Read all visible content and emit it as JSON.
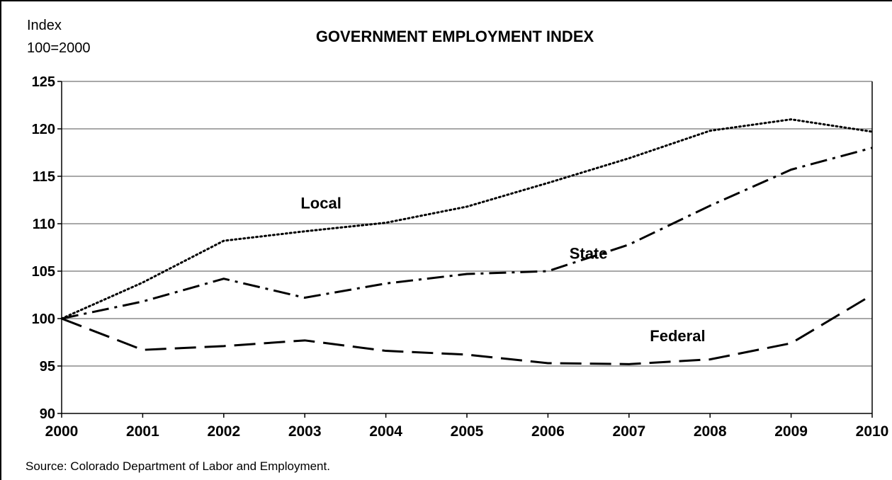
{
  "chart_data": {
    "type": "line",
    "title": "GOVERNMENT EMPLOYMENT INDEX",
    "ylabel_line1": "Index",
    "ylabel_line2": "100=2000",
    "source": "Source:  Colorado Department of Labor and Employment.",
    "x": [
      "2000",
      "2001",
      "2002",
      "2003",
      "2004",
      "2005",
      "2006",
      "2007",
      "2008",
      "2009",
      "2010"
    ],
    "ylim": [
      90,
      125
    ],
    "yticks": [
      "90",
      "95",
      "100",
      "105",
      "110",
      "115",
      "120",
      "125"
    ],
    "grid": true,
    "series": [
      {
        "name": "Local",
        "dash": "dotted",
        "values": [
          100,
          103.8,
          108.2,
          109.2,
          110.1,
          111.8,
          114.3,
          116.9,
          119.8,
          121.0,
          119.7
        ],
        "label_at": [
          2003.2,
          111.6
        ]
      },
      {
        "name": "State",
        "dash": "dashdot",
        "values": [
          100,
          101.8,
          104.2,
          102.2,
          103.7,
          104.7,
          105.0,
          107.8,
          111.9,
          115.7,
          118.0
        ],
        "label_at": [
          2006.5,
          106.3
        ]
      },
      {
        "name": "Federal",
        "dash": "dashed",
        "values": [
          100,
          96.7,
          97.1,
          97.7,
          96.6,
          96.2,
          95.3,
          95.2,
          95.7,
          97.4,
          102.5
        ],
        "label_at": [
          2007.6,
          97.6
        ]
      }
    ]
  }
}
